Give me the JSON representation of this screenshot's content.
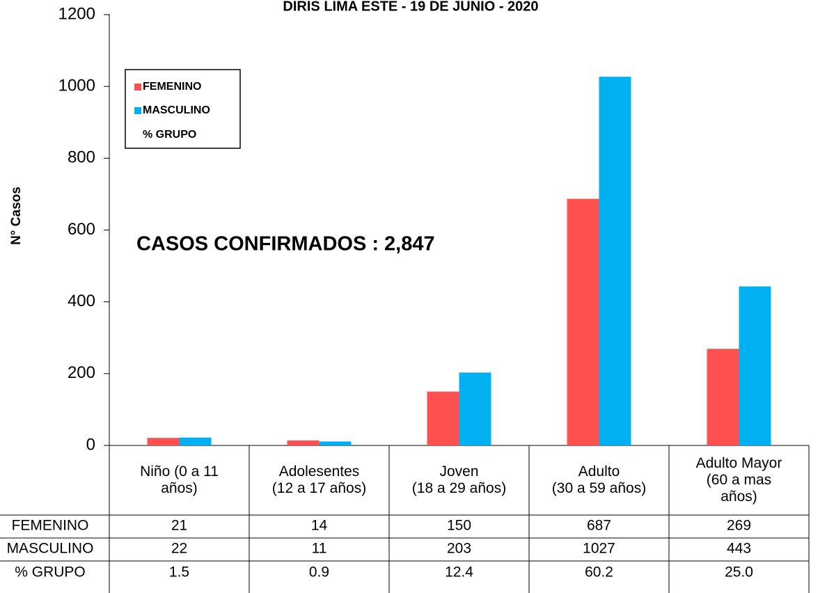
{
  "chart_data": {
    "type": "bar",
    "title": "DIRIS LIMA ESTE - 19 DE JUNIO - 2020",
    "y_label": "N° Casos",
    "annotation": "CASOS CONFIRMADOS : 2,847",
    "categories": [
      "Niño (0 a 11\naños)",
      "Adolesentes\n(12 a 17 años)",
      "Joven\n(18 a 29 años)",
      "Adulto\n(30 a 59 años)",
      "Adulto Mayor\n(60 a mas\naños)"
    ],
    "series": [
      {
        "name": "FEMENINO",
        "color": "#ff5050",
        "values": [
          21,
          14,
          150,
          687,
          269
        ]
      },
      {
        "name": "MASCULINO",
        "color": "#00b0f0",
        "values": [
          22,
          11,
          203,
          1027,
          443
        ]
      },
      {
        "name": "% GRUPO",
        "values": [
          1.5,
          0.9,
          12.4,
          60.2,
          25.0
        ],
        "value_labels": [
          "1.5",
          "0.9",
          "12.4",
          "60.2",
          "25.0"
        ]
      }
    ],
    "ylim": [
      0,
      1200
    ],
    "yticks": [
      0,
      200,
      400,
      600,
      800,
      1000,
      1200
    ],
    "legend": "upper left",
    "data_table": true
  }
}
